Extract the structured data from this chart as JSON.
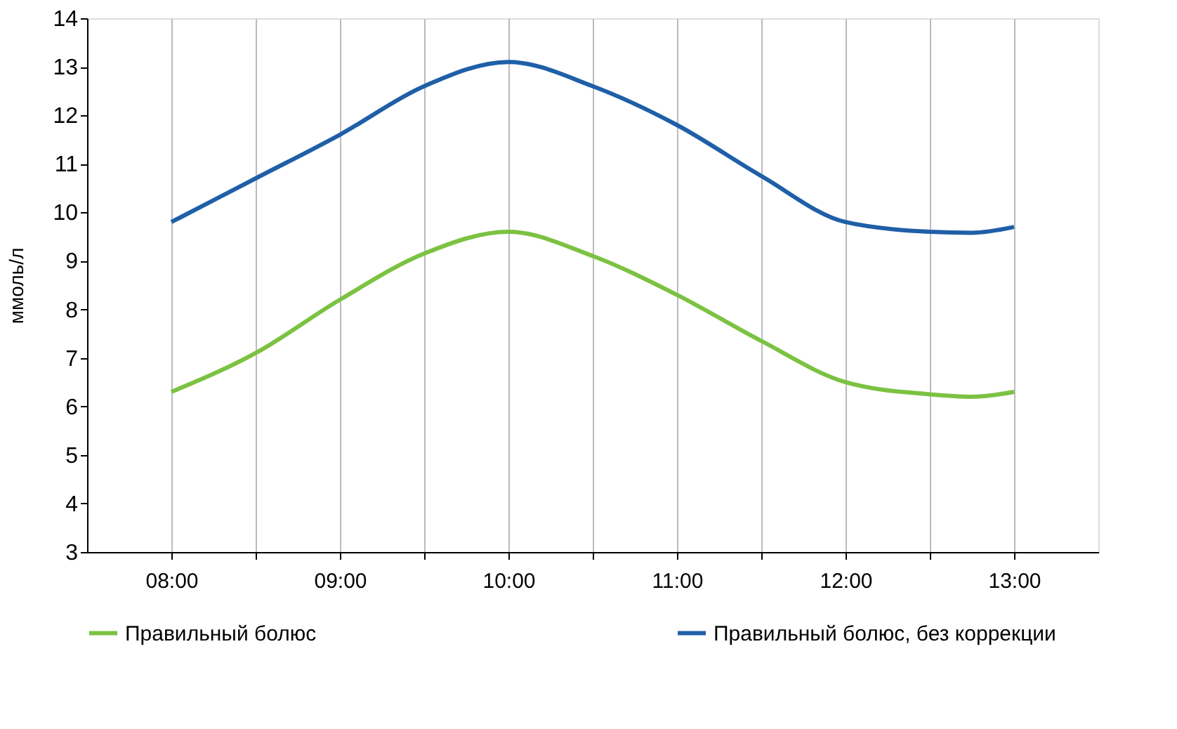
{
  "chart_data": {
    "type": "line",
    "ylabel": "ммоль/л",
    "x": [
      8,
      8.5,
      9,
      9.5,
      10,
      10.5,
      11,
      11.5,
      12,
      12.5,
      12.75,
      13
    ],
    "series": [
      {
        "name": "Правильный болюс",
        "color": "#7cc242",
        "values": [
          6.3,
          7.1,
          8.2,
          9.15,
          9.6,
          9.1,
          8.3,
          7.35,
          6.5,
          6.25,
          6.2,
          6.3
        ]
      },
      {
        "name": "Правильный болюс, без коррекции",
        "color": "#1f5fa8",
        "values": [
          9.8,
          10.7,
          11.6,
          12.6,
          13.1,
          12.6,
          11.8,
          10.75,
          9.8,
          9.6,
          9.58,
          9.7
        ]
      }
    ],
    "xlim": [
      7.5,
      13.5
    ],
    "xticks": [
      {
        "value": 8,
        "label": "08:00"
      },
      {
        "value": 8.5,
        "label": null
      },
      {
        "value": 9,
        "label": "09:00"
      },
      {
        "value": 9.5,
        "label": null
      },
      {
        "value": 10,
        "label": "10:00"
      },
      {
        "value": 10.5,
        "label": null
      },
      {
        "value": 11,
        "label": "11:00"
      },
      {
        "value": 11.5,
        "label": null
      },
      {
        "value": 12,
        "label": "12:00"
      },
      {
        "value": 12.5,
        "label": null
      },
      {
        "value": 13,
        "label": "13:00"
      }
    ],
    "ylim": [
      3,
      14
    ],
    "yticks": [
      3,
      4,
      5,
      6,
      7,
      8,
      9,
      10,
      11,
      12,
      13,
      14
    ],
    "grid": "x",
    "legend": "bottom",
    "marker": "none",
    "line_style": "solid"
  }
}
